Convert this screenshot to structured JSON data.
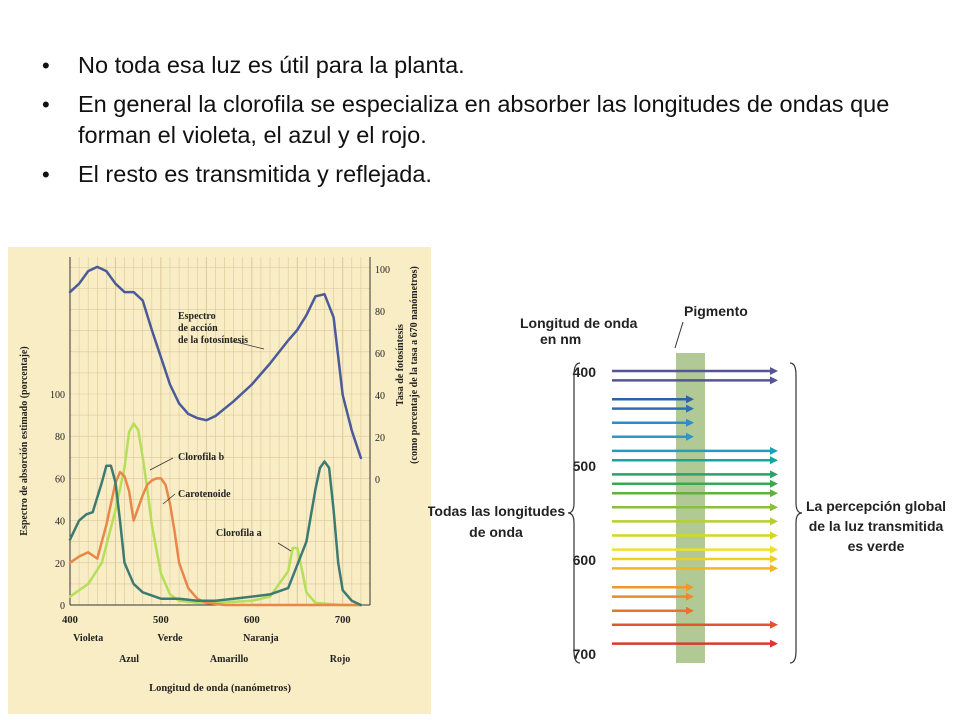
{
  "bullets": [
    "No toda esa luz  es útil para la planta.",
    "En general la clorofila  se especializa  en absorber las longitudes  de ondas que forman el violeta, el azul y el rojo.",
    "El resto es transmitida y reflejada."
  ],
  "chart_data": [
    {
      "type": "line",
      "xlabel": "Longitud de onda (nanómetros)",
      "ylabel": "Espectro de absorción estimado (porcentaje)",
      "y2label_line1": "Tasa de fotosíntesis",
      "y2label_line2": "(como porcentaje de la tasa a 670 nanómetros)",
      "xlim": [
        400,
        730
      ],
      "ylim": [
        0,
        100
      ],
      "y2lim": [
        0,
        100
      ],
      "x_ticks": [
        400,
        500,
        600,
        700
      ],
      "y_ticks": [
        0,
        20,
        40,
        60,
        80,
        100
      ],
      "y2_ticks": [
        0,
        20,
        40,
        60,
        80,
        100
      ],
      "color_labels_row1": [
        {
          "label": "Violeta",
          "x": 420
        },
        {
          "label": "Verde",
          "x": 510
        },
        {
          "label": "Naranja",
          "x": 610
        }
      ],
      "color_labels_row2": [
        {
          "label": "Azul",
          "x": 465
        },
        {
          "label": "Amarillo",
          "x": 575
        },
        {
          "label": "Rojo",
          "x": 697
        }
      ],
      "series": [
        {
          "name": "Espectro de acción de la fotosíntesis",
          "label_lines": [
            "Espectro",
            "de acción",
            "de la fotosíntesis"
          ],
          "axis": "right",
          "color": "#4a5a9a",
          "points": [
            [
              400,
              89
            ],
            [
              410,
              93
            ],
            [
              420,
              99
            ],
            [
              430,
              101
            ],
            [
              440,
              99
            ],
            [
              450,
              93
            ],
            [
              460,
              89
            ],
            [
              470,
              89
            ],
            [
              480,
              85
            ],
            [
              490,
              71
            ],
            [
              500,
              58
            ],
            [
              510,
              45
            ],
            [
              520,
              36
            ],
            [
              530,
              31
            ],
            [
              540,
              29
            ],
            [
              550,
              28
            ],
            [
              560,
              30
            ],
            [
              580,
              37
            ],
            [
              600,
              45
            ],
            [
              620,
              55
            ],
            [
              640,
              66
            ],
            [
              650,
              71
            ],
            [
              660,
              78
            ],
            [
              670,
              87
            ],
            [
              680,
              88
            ],
            [
              690,
              77
            ],
            [
              700,
              40
            ],
            [
              710,
              23
            ],
            [
              720,
              10
            ]
          ]
        },
        {
          "name": "Clorofila b",
          "label_lines": [
            "Clorofila b"
          ],
          "color": "#b5de5a",
          "points": [
            [
              400,
              4
            ],
            [
              420,
              10
            ],
            [
              435,
              20
            ],
            [
              450,
              45
            ],
            [
              460,
              65
            ],
            [
              465,
              82
            ],
            [
              470,
              86
            ],
            [
              475,
              83
            ],
            [
              480,
              70
            ],
            [
              485,
              55
            ],
            [
              490,
              38
            ],
            [
              500,
              15
            ],
            [
              510,
              5
            ],
            [
              520,
              2
            ],
            [
              540,
              1
            ],
            [
              560,
              1
            ],
            [
              600,
              2
            ],
            [
              620,
              4
            ],
            [
              640,
              16
            ],
            [
              645,
              27
            ],
            [
              650,
              27
            ],
            [
              655,
              17
            ],
            [
              660,
              6
            ],
            [
              670,
              1
            ],
            [
              700,
              0
            ],
            [
              720,
              0
            ]
          ]
        },
        {
          "name": "Carotenoide",
          "label_lines": [
            "Carotenoide"
          ],
          "color": "#e8874a",
          "points": [
            [
              400,
              20
            ],
            [
              410,
              23
            ],
            [
              420,
              25
            ],
            [
              430,
              22
            ],
            [
              440,
              38
            ],
            [
              450,
              58
            ],
            [
              455,
              63
            ],
            [
              460,
              61
            ],
            [
              465,
              54
            ],
            [
              470,
              40
            ],
            [
              475,
              46
            ],
            [
              480,
              52
            ],
            [
              485,
              57
            ],
            [
              490,
              59
            ],
            [
              495,
              60
            ],
            [
              500,
              60
            ],
            [
              505,
              57
            ],
            [
              510,
              48
            ],
            [
              515,
              35
            ],
            [
              520,
              20
            ],
            [
              530,
              8
            ],
            [
              540,
              3
            ],
            [
              550,
              1
            ],
            [
              570,
              0
            ],
            [
              720,
              0
            ]
          ]
        },
        {
          "name": "Clorofila a",
          "label_lines": [
            "Clorofila a"
          ],
          "color": "#3d7a72",
          "points": [
            [
              400,
              31
            ],
            [
              410,
              40
            ],
            [
              418,
              43
            ],
            [
              425,
              44
            ],
            [
              435,
              58
            ],
            [
              440,
              66
            ],
            [
              445,
              66
            ],
            [
              450,
              58
            ],
            [
              455,
              40
            ],
            [
              460,
              20
            ],
            [
              470,
              10
            ],
            [
              480,
              6
            ],
            [
              500,
              3
            ],
            [
              520,
              3
            ],
            [
              540,
              2
            ],
            [
              560,
              2
            ],
            [
              580,
              3
            ],
            [
              600,
              4
            ],
            [
              620,
              5
            ],
            [
              640,
              8
            ],
            [
              660,
              30
            ],
            [
              670,
              55
            ],
            [
              675,
              65
            ],
            [
              680,
              68
            ],
            [
              685,
              65
            ],
            [
              690,
              45
            ],
            [
              695,
              20
            ],
            [
              700,
              7
            ],
            [
              710,
              2
            ],
            [
              720,
              0
            ]
          ]
        }
      ]
    },
    {
      "type": "diagram",
      "title": "Pigmento",
      "left_label_lines": [
        "Longitud de onda",
        "en nm"
      ],
      "brace_left_lines": [
        "Todas las longitudes",
        "de onda"
      ],
      "brace_right_lines": [
        "La percepción global",
        "de la luz transmitida",
        "es verde"
      ],
      "wavelength_ticks": [
        "400",
        "500",
        "600",
        "700"
      ],
      "arrows": [
        {
          "wavelength": 400,
          "color": "#545496",
          "transmitted": true
        },
        {
          "wavelength": 410,
          "color": "#545496",
          "transmitted": true
        },
        {
          "wavelength": 430,
          "color": "#2c62a6",
          "transmitted": false
        },
        {
          "wavelength": 440,
          "color": "#2c6fb8",
          "transmitted": false
        },
        {
          "wavelength": 455,
          "color": "#2d8ccb",
          "transmitted": false
        },
        {
          "wavelength": 470,
          "color": "#2d98c7",
          "transmitted": false
        },
        {
          "wavelength": 485,
          "color": "#1f9fbf",
          "transmitted": true
        },
        {
          "wavelength": 495,
          "color": "#1aa59a",
          "transmitted": true
        },
        {
          "wavelength": 510,
          "color": "#28a26a",
          "transmitted": true
        },
        {
          "wavelength": 520,
          "color": "#3aa84e",
          "transmitted": true
        },
        {
          "wavelength": 530,
          "color": "#62b140",
          "transmitted": true
        },
        {
          "wavelength": 545,
          "color": "#88bf3d",
          "transmitted": true
        },
        {
          "wavelength": 560,
          "color": "#b6cf2c",
          "transmitted": true
        },
        {
          "wavelength": 575,
          "color": "#d6d81e",
          "transmitted": true
        },
        {
          "wavelength": 590,
          "color": "#f1e02a",
          "transmitted": true
        },
        {
          "wavelength": 600,
          "color": "#f3cc23",
          "transmitted": true
        },
        {
          "wavelength": 610,
          "color": "#f1b42a",
          "transmitted": true
        },
        {
          "wavelength": 630,
          "color": "#ec9a2a",
          "transmitted": false
        },
        {
          "wavelength": 640,
          "color": "#ea8a2c",
          "transmitted": false
        },
        {
          "wavelength": 655,
          "color": "#e9722c",
          "transmitted": false
        },
        {
          "wavelength": 670,
          "color": "#e3542e",
          "transmitted": true
        },
        {
          "wavelength": 690,
          "color": "#d93a30",
          "transmitted": true
        }
      ]
    }
  ]
}
